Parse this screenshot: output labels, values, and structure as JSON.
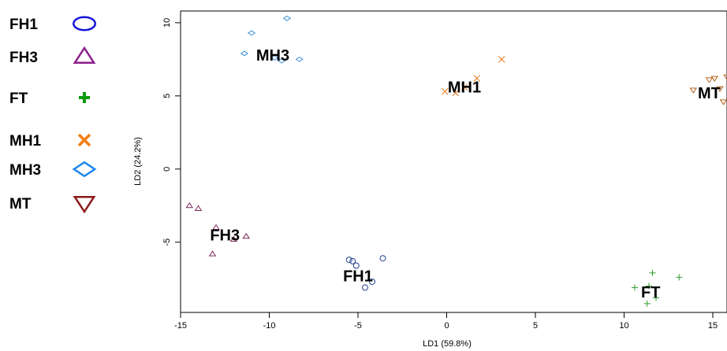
{
  "chart_data": {
    "type": "scatter",
    "title": "",
    "xlabel": "LD1 (59.8%)",
    "ylabel": "LD2 (24.2%)",
    "xlim": [
      -15.0,
      15.8
    ],
    "ylim": [
      -9.8,
      10.8
    ],
    "xticks": [
      -15,
      -10,
      -5,
      0,
      5,
      10,
      15
    ],
    "yticks": [
      -5,
      0,
      5,
      10
    ],
    "grid": false,
    "legend_position": "left",
    "legend": [
      {
        "name": "FH1",
        "marker": "ellipse",
        "color": "#1515d6"
      },
      {
        "name": "FH3",
        "marker": "triangle-up",
        "color": "#8b1e8b"
      },
      {
        "name": "FT",
        "marker": "plus",
        "color": "#0a9a0a"
      },
      {
        "name": "MH1",
        "marker": "x",
        "color": "#f07f17"
      },
      {
        "name": "MH3",
        "marker": "diamond",
        "color": "#1c86ee"
      },
      {
        "name": "MT",
        "marker": "triangle-down",
        "color": "#8b1a1a"
      }
    ],
    "series": [
      {
        "name": "FH1",
        "marker": "circle",
        "color": "#1f3f8f",
        "label": {
          "text": "FH1",
          "x": -5.0,
          "y": -7.3
        },
        "points": [
          [
            -5.5,
            -6.2
          ],
          [
            -5.3,
            -6.3
          ],
          [
            -5.1,
            -6.6
          ],
          [
            -4.2,
            -7.7
          ],
          [
            -4.6,
            -8.1
          ],
          [
            -3.6,
            -6.1
          ]
        ]
      },
      {
        "name": "FH3",
        "marker": "triangle-up",
        "color": "#7b2a5a",
        "label": {
          "text": "FH3",
          "x": -12.5,
          "y": -4.5
        },
        "points": [
          [
            -14.5,
            -2.5
          ],
          [
            -14.0,
            -2.7
          ],
          [
            -13.0,
            -4.0
          ],
          [
            -12.0,
            -4.8
          ],
          [
            -11.3,
            -4.6
          ],
          [
            -13.2,
            -5.8
          ]
        ]
      },
      {
        "name": "FT",
        "marker": "plus",
        "color": "#2e9b2e",
        "label": {
          "text": "FT",
          "x": 11.5,
          "y": -8.4
        },
        "points": [
          [
            10.6,
            -8.1
          ],
          [
            11.4,
            -8.0
          ],
          [
            11.6,
            -7.1
          ],
          [
            11.8,
            -8.8
          ],
          [
            11.3,
            -9.2
          ],
          [
            13.1,
            -7.4
          ]
        ]
      },
      {
        "name": "MH1",
        "marker": "x",
        "color": "#e8781a",
        "label": {
          "text": "MH1",
          "x": 1.0,
          "y": 5.6
        },
        "points": [
          [
            -0.1,
            5.3
          ],
          [
            0.5,
            5.2
          ],
          [
            1.0,
            5.6
          ],
          [
            1.7,
            6.2
          ],
          [
            3.1,
            7.5
          ]
        ]
      },
      {
        "name": "MH3",
        "marker": "diamond",
        "color": "#3a8fd6",
        "label": {
          "text": "MH3",
          "x": -9.8,
          "y": 7.8
        },
        "points": [
          [
            -11.4,
            7.9
          ],
          [
            -11.0,
            9.3
          ],
          [
            -9.7,
            7.6
          ],
          [
            -9.3,
            7.4
          ],
          [
            -9.0,
            10.3
          ],
          [
            -8.3,
            7.5
          ]
        ]
      },
      {
        "name": "MT",
        "marker": "triangle-down",
        "color": "#b5651d",
        "label": {
          "text": "MT",
          "x": 14.8,
          "y": 5.2
        },
        "points": [
          [
            13.9,
            5.4
          ],
          [
            14.8,
            6.1
          ],
          [
            15.1,
            6.2
          ],
          [
            15.4,
            5.5
          ],
          [
            15.6,
            4.6
          ],
          [
            15.8,
            6.3
          ]
        ]
      }
    ]
  }
}
